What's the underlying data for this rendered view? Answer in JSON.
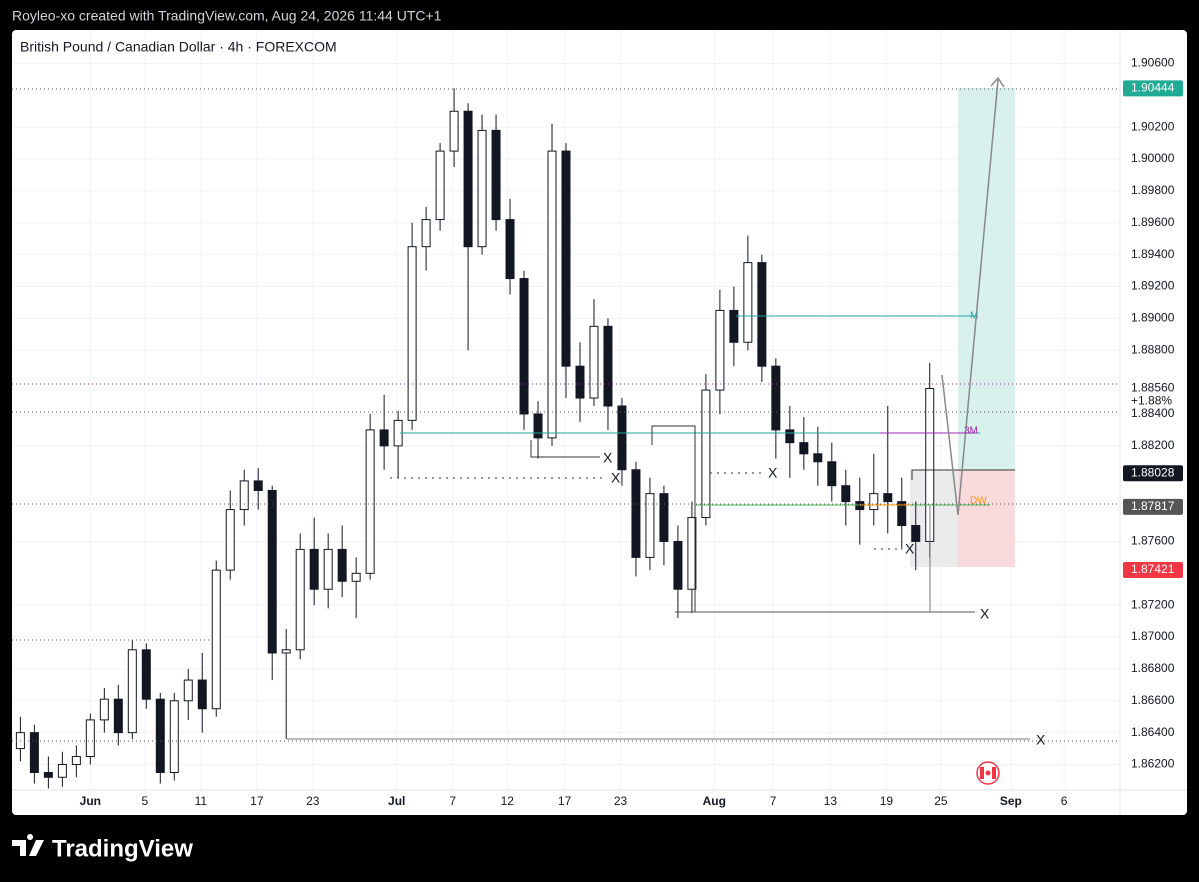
{
  "header": {
    "attribution": "Royleo-xo created with TradingView.com, Aug 24, 2026 11:44 UTC+1",
    "symbol": "British Pound / Canadian Dollar · 4h · FOREXCOM"
  },
  "footer": {
    "brand": "TradingView"
  },
  "chart_data": {
    "type": "candlestick",
    "x": [
      0,
      1,
      2,
      3,
      4,
      5,
      6,
      7,
      8,
      9,
      10,
      11,
      12,
      13,
      14,
      15,
      16,
      17,
      18,
      19,
      20,
      21,
      22,
      23,
      24,
      25,
      26,
      27,
      28,
      29,
      30,
      31,
      32,
      33,
      34,
      35,
      36,
      37,
      38,
      39,
      40,
      41,
      42,
      43,
      44,
      45,
      46,
      47,
      48,
      49,
      50,
      51,
      52,
      53,
      54,
      55,
      56,
      57,
      58,
      59,
      60,
      61,
      62,
      63,
      64,
      65
    ],
    "open": [
      1.863,
      1.864,
      1.8615,
      1.8612,
      1.862,
      1.8625,
      1.8648,
      1.8661,
      1.864,
      1.8692,
      1.8661,
      1.8615,
      1.866,
      1.8673,
      1.8655,
      1.8742,
      1.878,
      1.8798,
      1.8792,
      1.869,
      1.8692,
      1.8755,
      1.873,
      1.8755,
      1.8735,
      1.874,
      1.883,
      1.882,
      1.8836,
      1.8945,
      1.8962,
      1.9005,
      1.903,
      1.8945,
      1.9018,
      1.8962,
      1.8925,
      1.884,
      1.8825,
      1.9005,
      1.887,
      1.885,
      1.8895,
      1.8845,
      1.8805,
      1.875,
      1.879,
      1.876,
      1.873,
      1.8775,
      1.8855,
      1.8905,
      1.8885,
      1.8935,
      1.887,
      1.883,
      1.8822,
      1.8815,
      1.881,
      1.8795,
      1.8785,
      1.878,
      1.879,
      1.8785,
      1.877,
      1.876
    ],
    "high": [
      1.865,
      1.8645,
      1.8625,
      1.8628,
      1.8632,
      1.8652,
      1.8668,
      1.867,
      1.8698,
      1.8696,
      1.8665,
      1.8665,
      1.868,
      1.869,
      1.8748,
      1.8792,
      1.8805,
      1.8806,
      1.8795,
      1.8705,
      1.8765,
      1.8775,
      1.8765,
      1.877,
      1.875,
      1.884,
      1.8852,
      1.8842,
      1.896,
      1.897,
      1.901,
      1.90444,
      1.9035,
      1.9028,
      1.9028,
      1.8975,
      1.893,
      1.8848,
      1.9022,
      1.901,
      1.8885,
      1.8912,
      1.89,
      1.885,
      1.881,
      1.88,
      1.8795,
      1.877,
      1.8785,
      1.8865,
      1.8918,
      1.892,
      1.8952,
      1.894,
      1.8875,
      1.8845,
      1.8838,
      1.8832,
      1.8822,
      1.8805,
      1.88,
      1.8815,
      1.8845,
      1.88,
      1.8785,
      1.8872
    ],
    "low": [
      1.8622,
      1.8608,
      1.8605,
      1.8606,
      1.8612,
      1.862,
      1.864,
      1.8632,
      1.8636,
      1.8655,
      1.8608,
      1.861,
      1.8648,
      1.864,
      1.865,
      1.8736,
      1.877,
      1.878,
      1.8673,
      1.8636,
      1.8686,
      1.872,
      1.8718,
      1.8725,
      1.8712,
      1.8736,
      1.8805,
      1.88,
      1.883,
      1.893,
      1.8955,
      1.8995,
      1.888,
      1.894,
      1.8955,
      1.8915,
      1.883,
      1.8812,
      1.882,
      1.885,
      1.8835,
      1.8845,
      1.883,
      1.8795,
      1.8738,
      1.8742,
      1.8745,
      1.8712,
      1.8715,
      1.877,
      1.884,
      1.887,
      1.888,
      1.886,
      1.8812,
      1.88,
      1.8805,
      1.8795,
      1.8785,
      1.877,
      1.8758,
      1.877,
      1.8765,
      1.8755,
      1.8742,
      1.875
    ],
    "close": [
      1.864,
      1.8615,
      1.8612,
      1.862,
      1.8625,
      1.8648,
      1.8661,
      1.864,
      1.8692,
      1.8661,
      1.8615,
      1.866,
      1.8673,
      1.8655,
      1.8742,
      1.878,
      1.8798,
      1.8792,
      1.869,
      1.8692,
      1.8755,
      1.873,
      1.8755,
      1.8735,
      1.874,
      1.883,
      1.882,
      1.8836,
      1.8945,
      1.8962,
      1.9005,
      1.903,
      1.8945,
      1.9018,
      1.8962,
      1.8925,
      1.884,
      1.8825,
      1.9005,
      1.887,
      1.885,
      1.8895,
      1.8845,
      1.8805,
      1.875,
      1.879,
      1.876,
      1.873,
      1.8775,
      1.8855,
      1.8905,
      1.8885,
      1.8935,
      1.887,
      1.883,
      1.8822,
      1.8815,
      1.881,
      1.8795,
      1.8785,
      1.878,
      1.879,
      1.8785,
      1.877,
      1.876,
      1.8856
    ],
    "color": "#131722",
    "xlim": [
      -0.6,
      78.6
    ],
    "xticks": [
      {
        "value": 5.0,
        "label": "Jun"
      },
      {
        "value": 8.9,
        "label": "5"
      },
      {
        "value": 12.9,
        "label": "11"
      },
      {
        "value": 16.9,
        "label": "17"
      },
      {
        "value": 20.9,
        "label": "23"
      },
      {
        "value": 26.9,
        "label": "Jul"
      },
      {
        "value": 30.9,
        "label": "7"
      },
      {
        "value": 34.8,
        "label": "12"
      },
      {
        "value": 38.9,
        "label": "17"
      },
      {
        "value": 42.9,
        "label": "23"
      },
      {
        "value": 49.6,
        "label": "Aug"
      },
      {
        "value": 53.8,
        "label": "7"
      },
      {
        "value": 57.9,
        "label": "13"
      },
      {
        "value": 61.9,
        "label": "19"
      },
      {
        "value": 65.8,
        "label": "25"
      },
      {
        "value": 70.8,
        "label": "Sep"
      },
      {
        "value": 74.6,
        "label": "6"
      }
    ],
    "ylim": [
      1.8604,
      1.9081
    ],
    "yticks": [
      {
        "value": 1.906,
        "label": "1.90600"
      },
      {
        "value": 1.902,
        "label": "1.90200"
      },
      {
        "value": 1.9,
        "label": "1.90000"
      },
      {
        "value": 1.898,
        "label": "1.89800"
      },
      {
        "value": 1.896,
        "label": "1.89600"
      },
      {
        "value": 1.894,
        "label": "1.89400"
      },
      {
        "value": 1.892,
        "label": "1.89200"
      },
      {
        "value": 1.89,
        "label": "1.89000"
      },
      {
        "value": 1.888,
        "label": "1.88800"
      },
      {
        "value": 1.884,
        "label": "1.88400"
      },
      {
        "value": 1.882,
        "label": "1.88200"
      },
      {
        "value": 1.876,
        "label": "1.87600"
      },
      {
        "value": 1.872,
        "label": "1.87200"
      },
      {
        "value": 1.87,
        "label": "1.87000"
      },
      {
        "value": 1.868,
        "label": "1.86800"
      },
      {
        "value": 1.866,
        "label": "1.86600"
      },
      {
        "value": 1.864,
        "label": "1.86400"
      },
      {
        "value": 1.862,
        "label": "1.86200"
      }
    ],
    "grid": true,
    "price_labels": [
      {
        "value": 1.90444,
        "label": "1.90444",
        "color": "#22ab94"
      },
      {
        "value": 1.88028,
        "label": "1.88028",
        "color": "#131722"
      },
      {
        "value": 1.87817,
        "label": "1.87817",
        "color": "#555555"
      },
      {
        "value": 1.87421,
        "label": "1.87421",
        "color": "#f23645"
      }
    ],
    "last_price": {
      "value": 1.8856,
      "label": "1.88560",
      "change": "+1.88%"
    },
    "annotations": [
      "X",
      "X",
      "X",
      "X",
      "X",
      "X",
      "M",
      "3M",
      "DW"
    ]
  }
}
